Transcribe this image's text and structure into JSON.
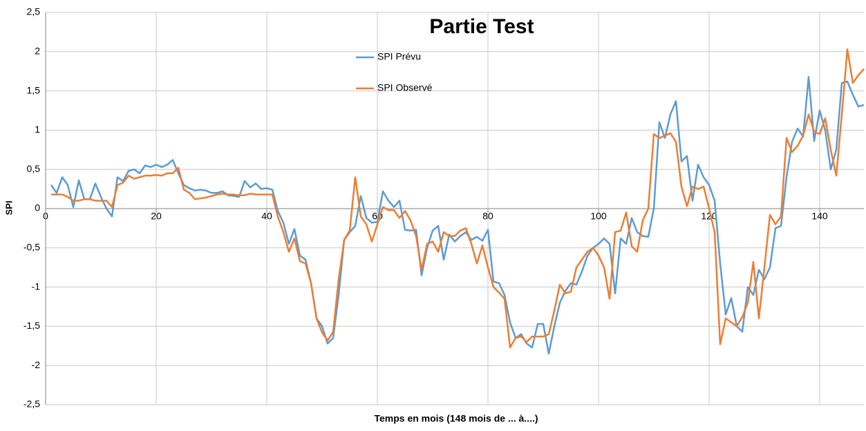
{
  "chart_data": {
    "type": "line",
    "title": "Partie Test",
    "x_label": "Temps en mois (148 mois de ... à....)",
    "y_label": "SPI",
    "x": [
      1,
      2,
      3,
      4,
      5,
      6,
      7,
      8,
      9,
      10,
      11,
      12,
      13,
      14,
      15,
      16,
      17,
      18,
      19,
      20,
      21,
      22,
      23,
      24,
      25,
      26,
      27,
      28,
      29,
      30,
      31,
      32,
      33,
      34,
      35,
      36,
      37,
      38,
      39,
      40,
      41,
      42,
      43,
      44,
      45,
      46,
      47,
      48,
      49,
      50,
      51,
      52,
      53,
      54,
      55,
      56,
      57,
      58,
      59,
      60,
      61,
      62,
      63,
      64,
      65,
      66,
      67,
      68,
      69,
      70,
      71,
      72,
      73,
      74,
      75,
      76,
      77,
      78,
      79,
      80,
      81,
      82,
      83,
      84,
      85,
      86,
      87,
      88,
      89,
      90,
      91,
      92,
      93,
      94,
      95,
      96,
      97,
      98,
      99,
      100,
      101,
      102,
      103,
      104,
      105,
      106,
      107,
      108,
      109,
      110,
      111,
      112,
      113,
      114,
      115,
      116,
      117,
      118,
      119,
      120,
      121,
      122,
      123,
      124,
      125,
      126,
      127,
      128,
      129,
      130,
      131,
      132,
      133,
      134,
      135,
      136,
      137,
      138,
      139,
      140,
      141,
      142,
      143,
      144,
      145,
      146,
      147,
      148
    ],
    "series": [
      {
        "name": "SPI Prévu",
        "color": "#5b9bd5",
        "values": [
          0.3,
          0.2,
          0.4,
          0.3,
          0.02,
          0.36,
          0.12,
          0.12,
          0.32,
          0.15,
          0.0,
          -0.1,
          0.4,
          0.35,
          0.48,
          0.5,
          0.45,
          0.55,
          0.53,
          0.56,
          0.53,
          0.56,
          0.62,
          0.45,
          0.3,
          0.26,
          0.23,
          0.24,
          0.23,
          0.2,
          0.2,
          0.22,
          0.17,
          0.16,
          0.15,
          0.35,
          0.27,
          0.32,
          0.25,
          0.26,
          0.24,
          -0.03,
          -0.18,
          -0.45,
          -0.26,
          -0.6,
          -0.65,
          -0.95,
          -1.4,
          -1.5,
          -1.72,
          -1.65,
          -1.1,
          -0.4,
          -0.3,
          -0.22,
          0.16,
          -0.12,
          -0.18,
          -0.17,
          0.22,
          0.1,
          0.02,
          0.1,
          -0.27,
          -0.28,
          -0.27,
          -0.85,
          -0.5,
          -0.28,
          -0.22,
          -0.65,
          -0.33,
          -0.42,
          -0.35,
          -0.3,
          -0.4,
          -0.36,
          -0.41,
          -0.27,
          -0.93,
          -0.95,
          -1.1,
          -1.45,
          -1.65,
          -1.6,
          -1.72,
          -1.77,
          -1.47,
          -1.47,
          -1.85,
          -1.5,
          -1.2,
          -1.05,
          -0.95,
          -0.97,
          -0.8,
          -0.6,
          -0.5,
          -0.45,
          -0.38,
          -0.45,
          -1.08,
          -0.38,
          -0.45,
          -0.12,
          -0.3,
          -0.35,
          -0.36,
          0.0,
          1.1,
          0.9,
          1.2,
          1.37,
          0.6,
          0.67,
          0.1,
          0.56,
          0.4,
          0.3,
          0.1,
          -0.7,
          -1.35,
          -1.14,
          -1.5,
          -1.57,
          -1.0,
          -1.1,
          -0.78,
          -0.9,
          -0.75,
          -0.25,
          -0.22,
          0.4,
          0.85,
          1.02,
          0.92,
          1.68,
          0.86,
          1.25,
          1.0,
          0.5,
          0.75,
          1.6,
          1.62,
          1.45,
          1.3,
          1.32
        ]
      },
      {
        "name": "SPI Observé",
        "color": "#ed7d31",
        "values": [
          0.18,
          0.18,
          0.18,
          0.15,
          0.1,
          0.1,
          0.12,
          0.12,
          0.1,
          0.1,
          0.1,
          0.02,
          0.3,
          0.33,
          0.42,
          0.38,
          0.4,
          0.42,
          0.42,
          0.43,
          0.42,
          0.45,
          0.45,
          0.52,
          0.24,
          0.2,
          0.12,
          0.13,
          0.14,
          0.16,
          0.18,
          0.19,
          0.18,
          0.18,
          0.17,
          0.17,
          0.19,
          0.18,
          0.18,
          0.18,
          0.18,
          -0.1,
          -0.3,
          -0.55,
          -0.38,
          -0.67,
          -0.7,
          -0.95,
          -1.4,
          -1.58,
          -1.68,
          -1.57,
          -0.9,
          -0.4,
          -0.28,
          0.4,
          -0.1,
          -0.2,
          -0.42,
          -0.2,
          0.02,
          -0.02,
          -0.02,
          -0.12,
          -0.03,
          -0.15,
          -0.35,
          -0.78,
          -0.45,
          -0.42,
          -0.55,
          -0.3,
          -0.35,
          -0.35,
          -0.28,
          -0.25,
          -0.45,
          -0.7,
          -0.47,
          -0.75,
          -1.0,
          -1.07,
          -1.15,
          -1.77,
          -1.65,
          -1.63,
          -1.7,
          -1.63,
          -1.63,
          -1.63,
          -1.6,
          -1.3,
          -0.97,
          -1.08,
          -1.06,
          -0.75,
          -0.65,
          -0.55,
          -0.5,
          -0.6,
          -0.75,
          -1.15,
          -0.3,
          -0.28,
          -0.05,
          -0.48,
          -0.55,
          -0.15,
          0.0,
          0.95,
          0.9,
          0.93,
          0.96,
          0.85,
          0.28,
          0.03,
          0.28,
          0.25,
          0.28,
          0.0,
          -0.3,
          -1.73,
          -1.4,
          -1.45,
          -1.5,
          -1.38,
          -1.2,
          -0.68,
          -1.4,
          -0.75,
          -0.08,
          -0.2,
          -0.1,
          0.9,
          0.72,
          0.8,
          0.93,
          1.2,
          0.98,
          0.95,
          1.15,
          0.75,
          0.42,
          1.2,
          2.03,
          1.6,
          1.7,
          1.78
        ]
      }
    ],
    "xlim": [
      0,
      148
    ],
    "xticks": [
      0,
      20,
      40,
      60,
      80,
      100,
      120,
      140
    ],
    "ylim": [
      -2.5,
      2.5
    ],
    "yticks": [
      {
        "value": -2.5,
        "label": "-2,5"
      },
      -2,
      {
        "value": -1.5,
        "label": "-1,5"
      },
      -1,
      {
        "value": -0.5,
        "label": "-0,5"
      },
      0,
      {
        "value": 0.5,
        "label": "0,5"
      },
      1,
      {
        "value": 1.5,
        "label": "1,5"
      },
      2,
      {
        "value": 2.5,
        "label": "2,5"
      }
    ],
    "grid": true
  }
}
